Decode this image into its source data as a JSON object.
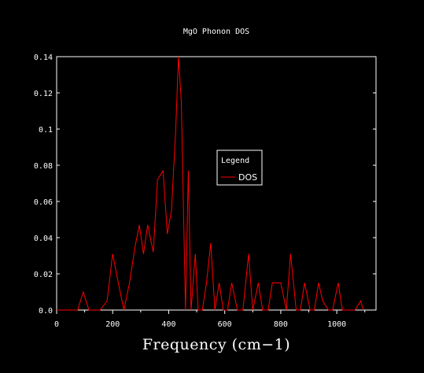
{
  "chart_data": {
    "type": "line",
    "title": "MgO Phonon DOS",
    "xlabel": "Frequency (cm−1)",
    "ylabel": "",
    "xlim": [
      0,
      1140
    ],
    "ylim": [
      0,
      0.14
    ],
    "xticks": [
      0,
      200,
      400,
      600,
      800,
      1000
    ],
    "xtick_labels": [
      "0",
      "200",
      "400",
      "600",
      "800",
      "1000"
    ],
    "yticks": [
      0.0,
      0.02,
      0.04,
      0.06,
      0.08,
      0.1,
      0.12,
      0.14
    ],
    "ytick_labels": [
      "0.0",
      "0.02",
      "0.04",
      "0.06",
      "0.08",
      "0.1",
      "0.12",
      "0.14"
    ],
    "grid": false,
    "legend": {
      "title": "Legend",
      "placement": "center-right"
    },
    "series": [
      {
        "name": "DOS",
        "color": "#ff0000",
        "x": [
          0,
          75,
          95,
          115,
          135,
          155,
          180,
          200,
          220,
          240,
          260,
          280,
          295,
          310,
          325,
          345,
          360,
          380,
          395,
          410,
          425,
          435,
          445,
          460,
          470,
          480,
          495,
          505,
          520,
          535,
          550,
          565,
          580,
          595,
          610,
          625,
          645,
          665,
          685,
          700,
          720,
          735,
          755,
          770,
          785,
          800,
          820,
          835,
          855,
          870,
          885,
          905,
          920,
          935,
          950,
          970,
          985,
          1005,
          1020,
          1040,
          1065,
          1085,
          1095
        ],
        "y": [
          0,
          0,
          0.01,
          0,
          0,
          0,
          0.005,
          0.031,
          0.015,
          0,
          0.015,
          0.035,
          0.047,
          0.031,
          0.047,
          0.032,
          0.072,
          0.077,
          0.042,
          0.055,
          0.1,
          0.14,
          0.115,
          0,
          0.077,
          0,
          0.031,
          0,
          0,
          0.015,
          0.037,
          0,
          0.015,
          0,
          0,
          0.015,
          0,
          0,
          0.031,
          0,
          0.015,
          0,
          0,
          0.015,
          0.015,
          0.015,
          0,
          0.031,
          0,
          0,
          0.015,
          0,
          0,
          0.015,
          0.005,
          0,
          0,
          0.015,
          0,
          0,
          0,
          0.005,
          0
        ]
      }
    ]
  }
}
